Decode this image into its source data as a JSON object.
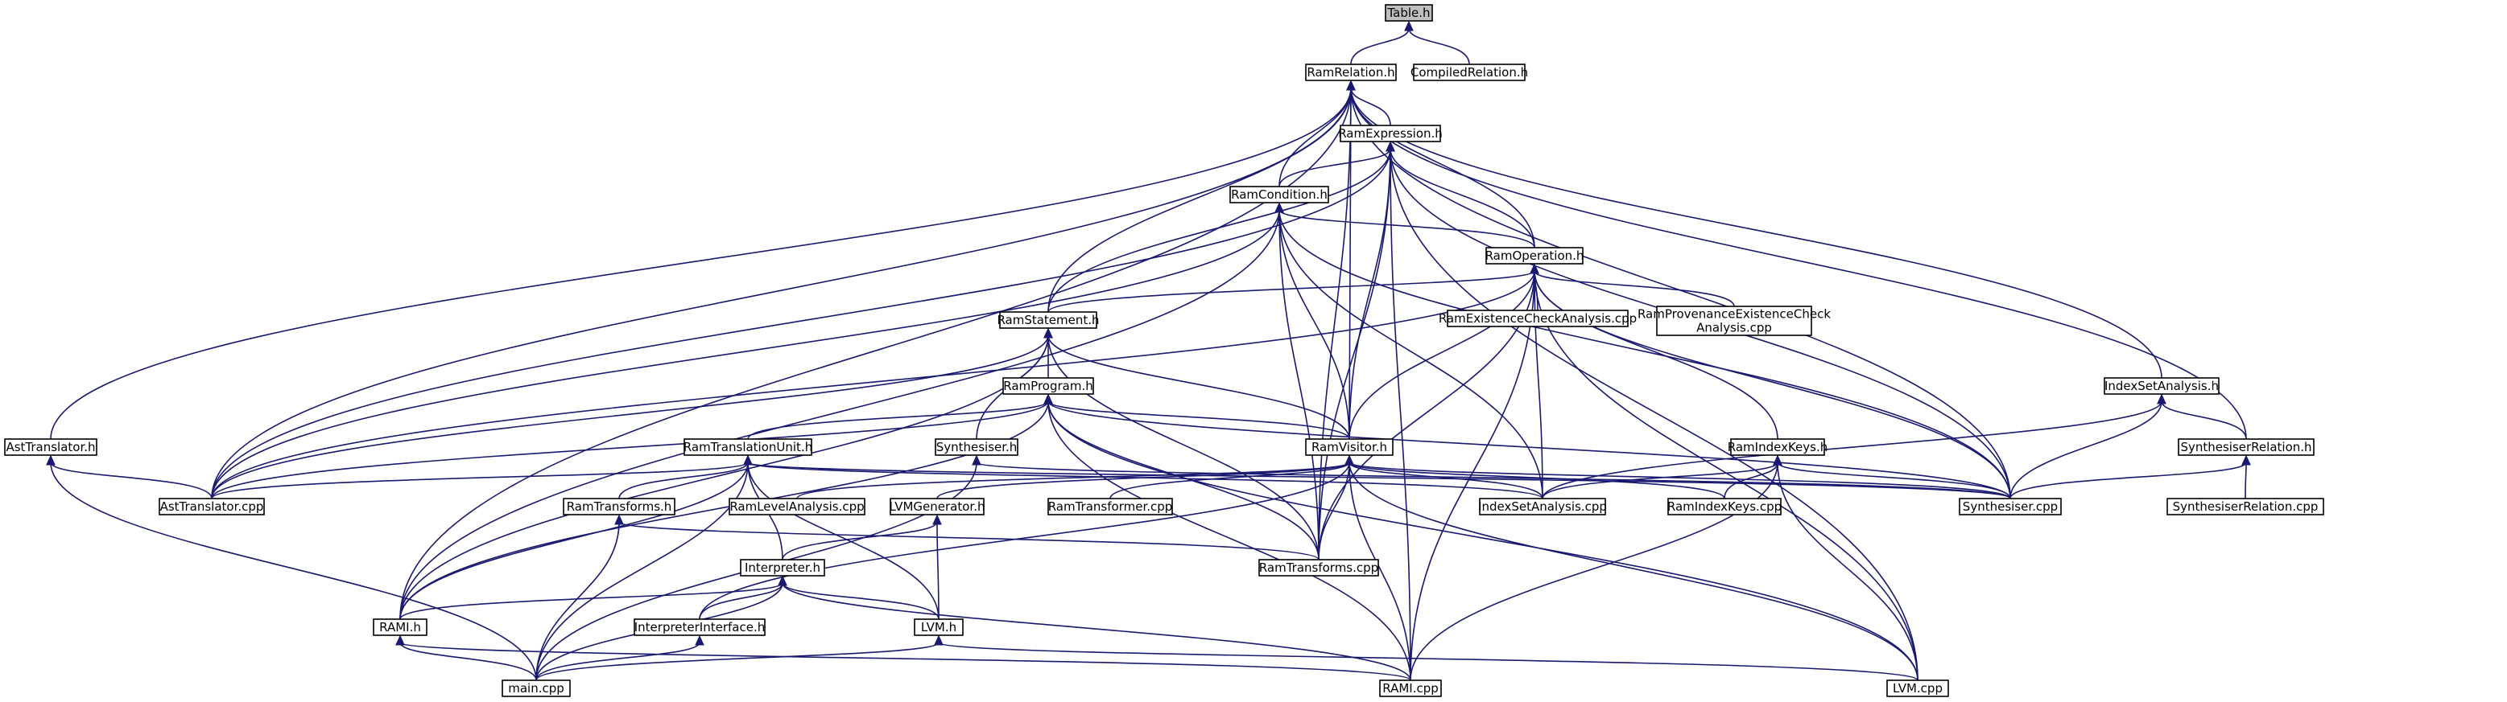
{
  "root": "table_h",
  "nodes": [
    {
      "id": "table_h",
      "lines": [
        "Table.h"
      ]
    },
    {
      "id": "ramrelation_h",
      "lines": [
        "RamRelation.h"
      ]
    },
    {
      "id": "compiledrelation_h",
      "lines": [
        "CompiledRelation.h"
      ]
    },
    {
      "id": "ramexpression_h",
      "lines": [
        "RamExpression.h"
      ]
    },
    {
      "id": "ramcondition_h",
      "lines": [
        "RamCondition.h"
      ]
    },
    {
      "id": "ramoperation_h",
      "lines": [
        "RamOperation.h"
      ]
    },
    {
      "id": "ramexistence_cpp",
      "lines": [
        "RamExistenceCheckAnalysis.cpp"
      ]
    },
    {
      "id": "ramprovenance_cpp",
      "lines": [
        "RamProvenanceExistenceCheck",
        "Analysis.cpp"
      ]
    },
    {
      "id": "ramstatement_h",
      "lines": [
        "RamStatement.h"
      ]
    },
    {
      "id": "ramprogram_h",
      "lines": [
        "RamProgram.h"
      ]
    },
    {
      "id": "indexsetanalysis_h",
      "lines": [
        "IndexSetAnalysis.h"
      ]
    },
    {
      "id": "asttranslator_h",
      "lines": [
        "AstTranslator.h"
      ]
    },
    {
      "id": "ramtranslationunit_h",
      "lines": [
        "RamTranslationUnit.h"
      ]
    },
    {
      "id": "synthesiser_h",
      "lines": [
        "Synthesiser.h"
      ]
    },
    {
      "id": "ramvisitor_h",
      "lines": [
        "RamVisitor.h"
      ]
    },
    {
      "id": "ramindexkeys_h",
      "lines": [
        "RamIndexKeys.h"
      ]
    },
    {
      "id": "synthesiserrelation_h",
      "lines": [
        "SynthesiserRelation.h"
      ]
    },
    {
      "id": "asttranslator_cpp",
      "lines": [
        "AstTranslator.cpp"
      ]
    },
    {
      "id": "ramtransforms_h",
      "lines": [
        "RamTransforms.h"
      ]
    },
    {
      "id": "ramlevelanalysis_cpp",
      "lines": [
        "RamLevelAnalysis.cpp"
      ]
    },
    {
      "id": "llvmgenerator_h",
      "lines": [
        "LVMGenerator.h"
      ]
    },
    {
      "id": "ramtransformer_cpp",
      "lines": [
        "RamTransformer.cpp"
      ]
    },
    {
      "id": "indexsetanalysis_cpp",
      "lines": [
        "IndexSetAnalysis.cpp"
      ]
    },
    {
      "id": "ramindexkeys_cpp",
      "lines": [
        "RamIndexKeys.cpp"
      ]
    },
    {
      "id": "synthesiser_cpp",
      "lines": [
        "Synthesiser.cpp"
      ]
    },
    {
      "id": "synthesiserrelation_cpp",
      "lines": [
        "SynthesiserRelation.cpp"
      ]
    },
    {
      "id": "interpreter_h",
      "lines": [
        "Interpreter.h"
      ]
    },
    {
      "id": "ramtransforms_cpp",
      "lines": [
        "RamTransforms.cpp"
      ]
    },
    {
      "id": "rami_h",
      "lines": [
        "RAMI.h"
      ]
    },
    {
      "id": "interpreterinterface_h",
      "lines": [
        "InterpreterInterface.h"
      ]
    },
    {
      "id": "lvm_h",
      "lines": [
        "LVM.h"
      ]
    },
    {
      "id": "main_cpp",
      "lines": [
        "main.cpp"
      ]
    },
    {
      "id": "rami_cpp",
      "lines": [
        "RAMI.cpp"
      ]
    },
    {
      "id": "lvm_cpp",
      "lines": [
        "LVM.cpp"
      ]
    }
  ],
  "edges": [
    [
      "table_h",
      "ramrelation_h"
    ],
    [
      "table_h",
      "compiledrelation_h"
    ],
    [
      "ramrelation_h",
      "ramexpression_h"
    ],
    [
      "ramrelation_h",
      "ramcondition_h"
    ],
    [
      "ramrelation_h",
      "ramoperation_h"
    ],
    [
      "ramrelation_h",
      "ramstatement_h"
    ],
    [
      "ramrelation_h",
      "ramvisitor_h"
    ],
    [
      "ramrelation_h",
      "indexsetanalysis_h"
    ],
    [
      "ramrelation_h",
      "synthesiserrelation_h"
    ],
    [
      "ramrelation_h",
      "asttranslator_h"
    ],
    [
      "ramrelation_h",
      "asttranslator_cpp"
    ],
    [
      "ramrelation_h",
      "synthesiser_cpp"
    ],
    [
      "ramrelation_h",
      "ramtransforms_cpp"
    ],
    [
      "ramrelation_h",
      "rami_h"
    ],
    [
      "ramexpression_h",
      "ramcondition_h"
    ],
    [
      "ramexpression_h",
      "ramoperation_h"
    ],
    [
      "ramexpression_h",
      "ramstatement_h"
    ],
    [
      "ramexpression_h",
      "ramvisitor_h"
    ],
    [
      "ramexpression_h",
      "asttranslator_cpp"
    ],
    [
      "ramexpression_h",
      "synthesiser_cpp"
    ],
    [
      "ramexpression_h",
      "ramtransforms_cpp"
    ],
    [
      "ramexpression_h",
      "rami_cpp"
    ],
    [
      "ramexpression_h",
      "lvm_cpp"
    ],
    [
      "ramcondition_h",
      "ramoperation_h"
    ],
    [
      "ramcondition_h",
      "ramvisitor_h"
    ],
    [
      "ramcondition_h",
      "indexsetanalysis_cpp"
    ],
    [
      "ramcondition_h",
      "asttranslator_cpp"
    ],
    [
      "ramcondition_h",
      "synthesiser_cpp"
    ],
    [
      "ramcondition_h",
      "ramtransforms_cpp"
    ],
    [
      "ramcondition_h",
      "rami_h"
    ],
    [
      "ramoperation_h",
      "ramstatement_h"
    ],
    [
      "ramoperation_h",
      "ramexistence_cpp"
    ],
    [
      "ramoperation_h",
      "ramprovenance_cpp"
    ],
    [
      "ramoperation_h",
      "ramvisitor_h"
    ],
    [
      "ramoperation_h",
      "ramindexkeys_h"
    ],
    [
      "ramoperation_h",
      "indexsetanalysis_cpp"
    ],
    [
      "ramoperation_h",
      "synthesiser_cpp"
    ],
    [
      "ramoperation_h",
      "asttranslator_cpp"
    ],
    [
      "ramoperation_h",
      "ramtransforms_cpp"
    ],
    [
      "ramoperation_h",
      "rami_cpp"
    ],
    [
      "ramoperation_h",
      "lvm_cpp"
    ],
    [
      "ramstatement_h",
      "ramprogram_h"
    ],
    [
      "ramstatement_h",
      "synthesiser_h"
    ],
    [
      "ramstatement_h",
      "ramvisitor_h"
    ],
    [
      "ramstatement_h",
      "asttranslator_cpp"
    ],
    [
      "ramstatement_h",
      "ramtransforms_cpp"
    ],
    [
      "ramstatement_h",
      "rami_h"
    ],
    [
      "ramprogram_h",
      "ramtranslationunit_h"
    ],
    [
      "ramprogram_h",
      "ramvisitor_h"
    ],
    [
      "ramprogram_h",
      "asttranslator_cpp"
    ],
    [
      "ramprogram_h",
      "synthesiser_cpp"
    ],
    [
      "ramprogram_h",
      "ramtransforms_cpp"
    ],
    [
      "ramprogram_h",
      "rami_cpp"
    ],
    [
      "ramprogram_h",
      "lvm_cpp"
    ],
    [
      "ramprogram_h",
      "rami_h"
    ],
    [
      "indexsetanalysis_h",
      "synthesiserrelation_h"
    ],
    [
      "indexsetanalysis_h",
      "indexsetanalysis_cpp"
    ],
    [
      "indexsetanalysis_h",
      "synthesiser_cpp"
    ],
    [
      "asttranslator_h",
      "asttranslator_cpp"
    ],
    [
      "asttranslator_h",
      "main_cpp"
    ],
    [
      "ramtranslationunit_h",
      "asttranslator_cpp"
    ],
    [
      "ramtranslationunit_h",
      "ramtransforms_h"
    ],
    [
      "ramtranslationunit_h",
      "indexsetanalysis_cpp"
    ],
    [
      "ramtranslationunit_h",
      "synthesiser_cpp"
    ],
    [
      "ramtranslationunit_h",
      "interpreter_h"
    ],
    [
      "ramtranslationunit_h",
      "rami_h"
    ],
    [
      "ramtranslationunit_h",
      "lvm_h"
    ],
    [
      "ramtranslationunit_h",
      "main_cpp"
    ],
    [
      "synthesiser_h",
      "synthesiser_cpp"
    ],
    [
      "synthesiser_h",
      "main_cpp"
    ],
    [
      "ramvisitor_h",
      "ramlevelanalysis_cpp"
    ],
    [
      "ramvisitor_h",
      "llvmgenerator_h"
    ],
    [
      "ramvisitor_h",
      "ramtransformer_cpp"
    ],
    [
      "ramvisitor_h",
      "indexsetanalysis_cpp"
    ],
    [
      "ramvisitor_h",
      "ramindexkeys_cpp"
    ],
    [
      "ramvisitor_h",
      "synthesiser_cpp"
    ],
    [
      "ramvisitor_h",
      "ramtransforms_cpp"
    ],
    [
      "ramvisitor_h",
      "rami_cpp"
    ],
    [
      "ramvisitor_h",
      "lvm_cpp"
    ],
    [
      "ramvisitor_h",
      "interpreterinterface_h"
    ],
    [
      "ramindexkeys_h",
      "indexsetanalysis_cpp"
    ],
    [
      "ramindexkeys_h",
      "ramindexkeys_cpp"
    ],
    [
      "ramindexkeys_h",
      "synthesiser_cpp"
    ],
    [
      "ramindexkeys_h",
      "rami_cpp"
    ],
    [
      "ramindexkeys_h",
      "lvm_cpp"
    ],
    [
      "synthesiserrelation_h",
      "synthesiser_cpp"
    ],
    [
      "synthesiserrelation_h",
      "synthesiserrelation_cpp"
    ],
    [
      "ramtransforms_h",
      "ramtransforms_cpp"
    ],
    [
      "ramtransforms_h",
      "main_cpp"
    ],
    [
      "llvmgenerator_h",
      "interpreter_h"
    ],
    [
      "llvmgenerator_h",
      "lvm_h"
    ],
    [
      "interpreter_h",
      "rami_h"
    ],
    [
      "interpreter_h",
      "interpreterinterface_h"
    ],
    [
      "interpreter_h",
      "lvm_h"
    ],
    [
      "interpreter_h",
      "main_cpp"
    ],
    [
      "interpreter_h",
      "rami_cpp"
    ],
    [
      "rami_h",
      "main_cpp"
    ],
    [
      "rami_h",
      "rami_cpp"
    ],
    [
      "interpreterinterface_h",
      "main_cpp"
    ],
    [
      "lvm_h",
      "main_cpp"
    ],
    [
      "lvm_h",
      "lvm_cpp"
    ]
  ]
}
